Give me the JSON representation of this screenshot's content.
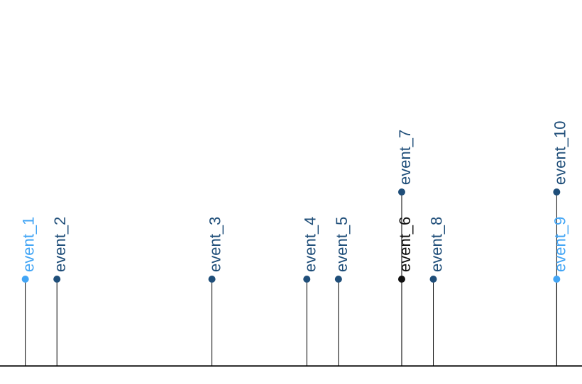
{
  "chart_data": {
    "type": "timeline",
    "title": "",
    "xlabel": "",
    "ylabel": "",
    "grid": false,
    "legend": "none",
    "x_range": [
      -0.8,
      17.6
    ],
    "events": [
      {
        "label": "event_1",
        "x": 0.0,
        "level": 1,
        "color": "#42a5f5"
      },
      {
        "label": "event_2",
        "x": 1.0,
        "level": 1,
        "color": "#1f4e79"
      },
      {
        "label": "event_3",
        "x": 5.9,
        "level": 1,
        "color": "#1f4e79"
      },
      {
        "label": "event_4",
        "x": 8.9,
        "level": 1,
        "color": "#1f4e79"
      },
      {
        "label": "event_5",
        "x": 9.9,
        "level": 1,
        "color": "#1f4e79"
      },
      {
        "label": "event_6",
        "x": 11.9,
        "level": 1,
        "color": "#111111"
      },
      {
        "label": "event_7",
        "x": 11.9,
        "level": 2,
        "color": "#1f4e79"
      },
      {
        "label": "event_8",
        "x": 12.9,
        "level": 1,
        "color": "#1f4e79"
      },
      {
        "label": "event_9",
        "x": 16.8,
        "level": 1,
        "color": "#42a5f5"
      },
      {
        "label": "event_10",
        "x": 16.8,
        "level": 2,
        "color": "#1f4e79"
      }
    ]
  }
}
